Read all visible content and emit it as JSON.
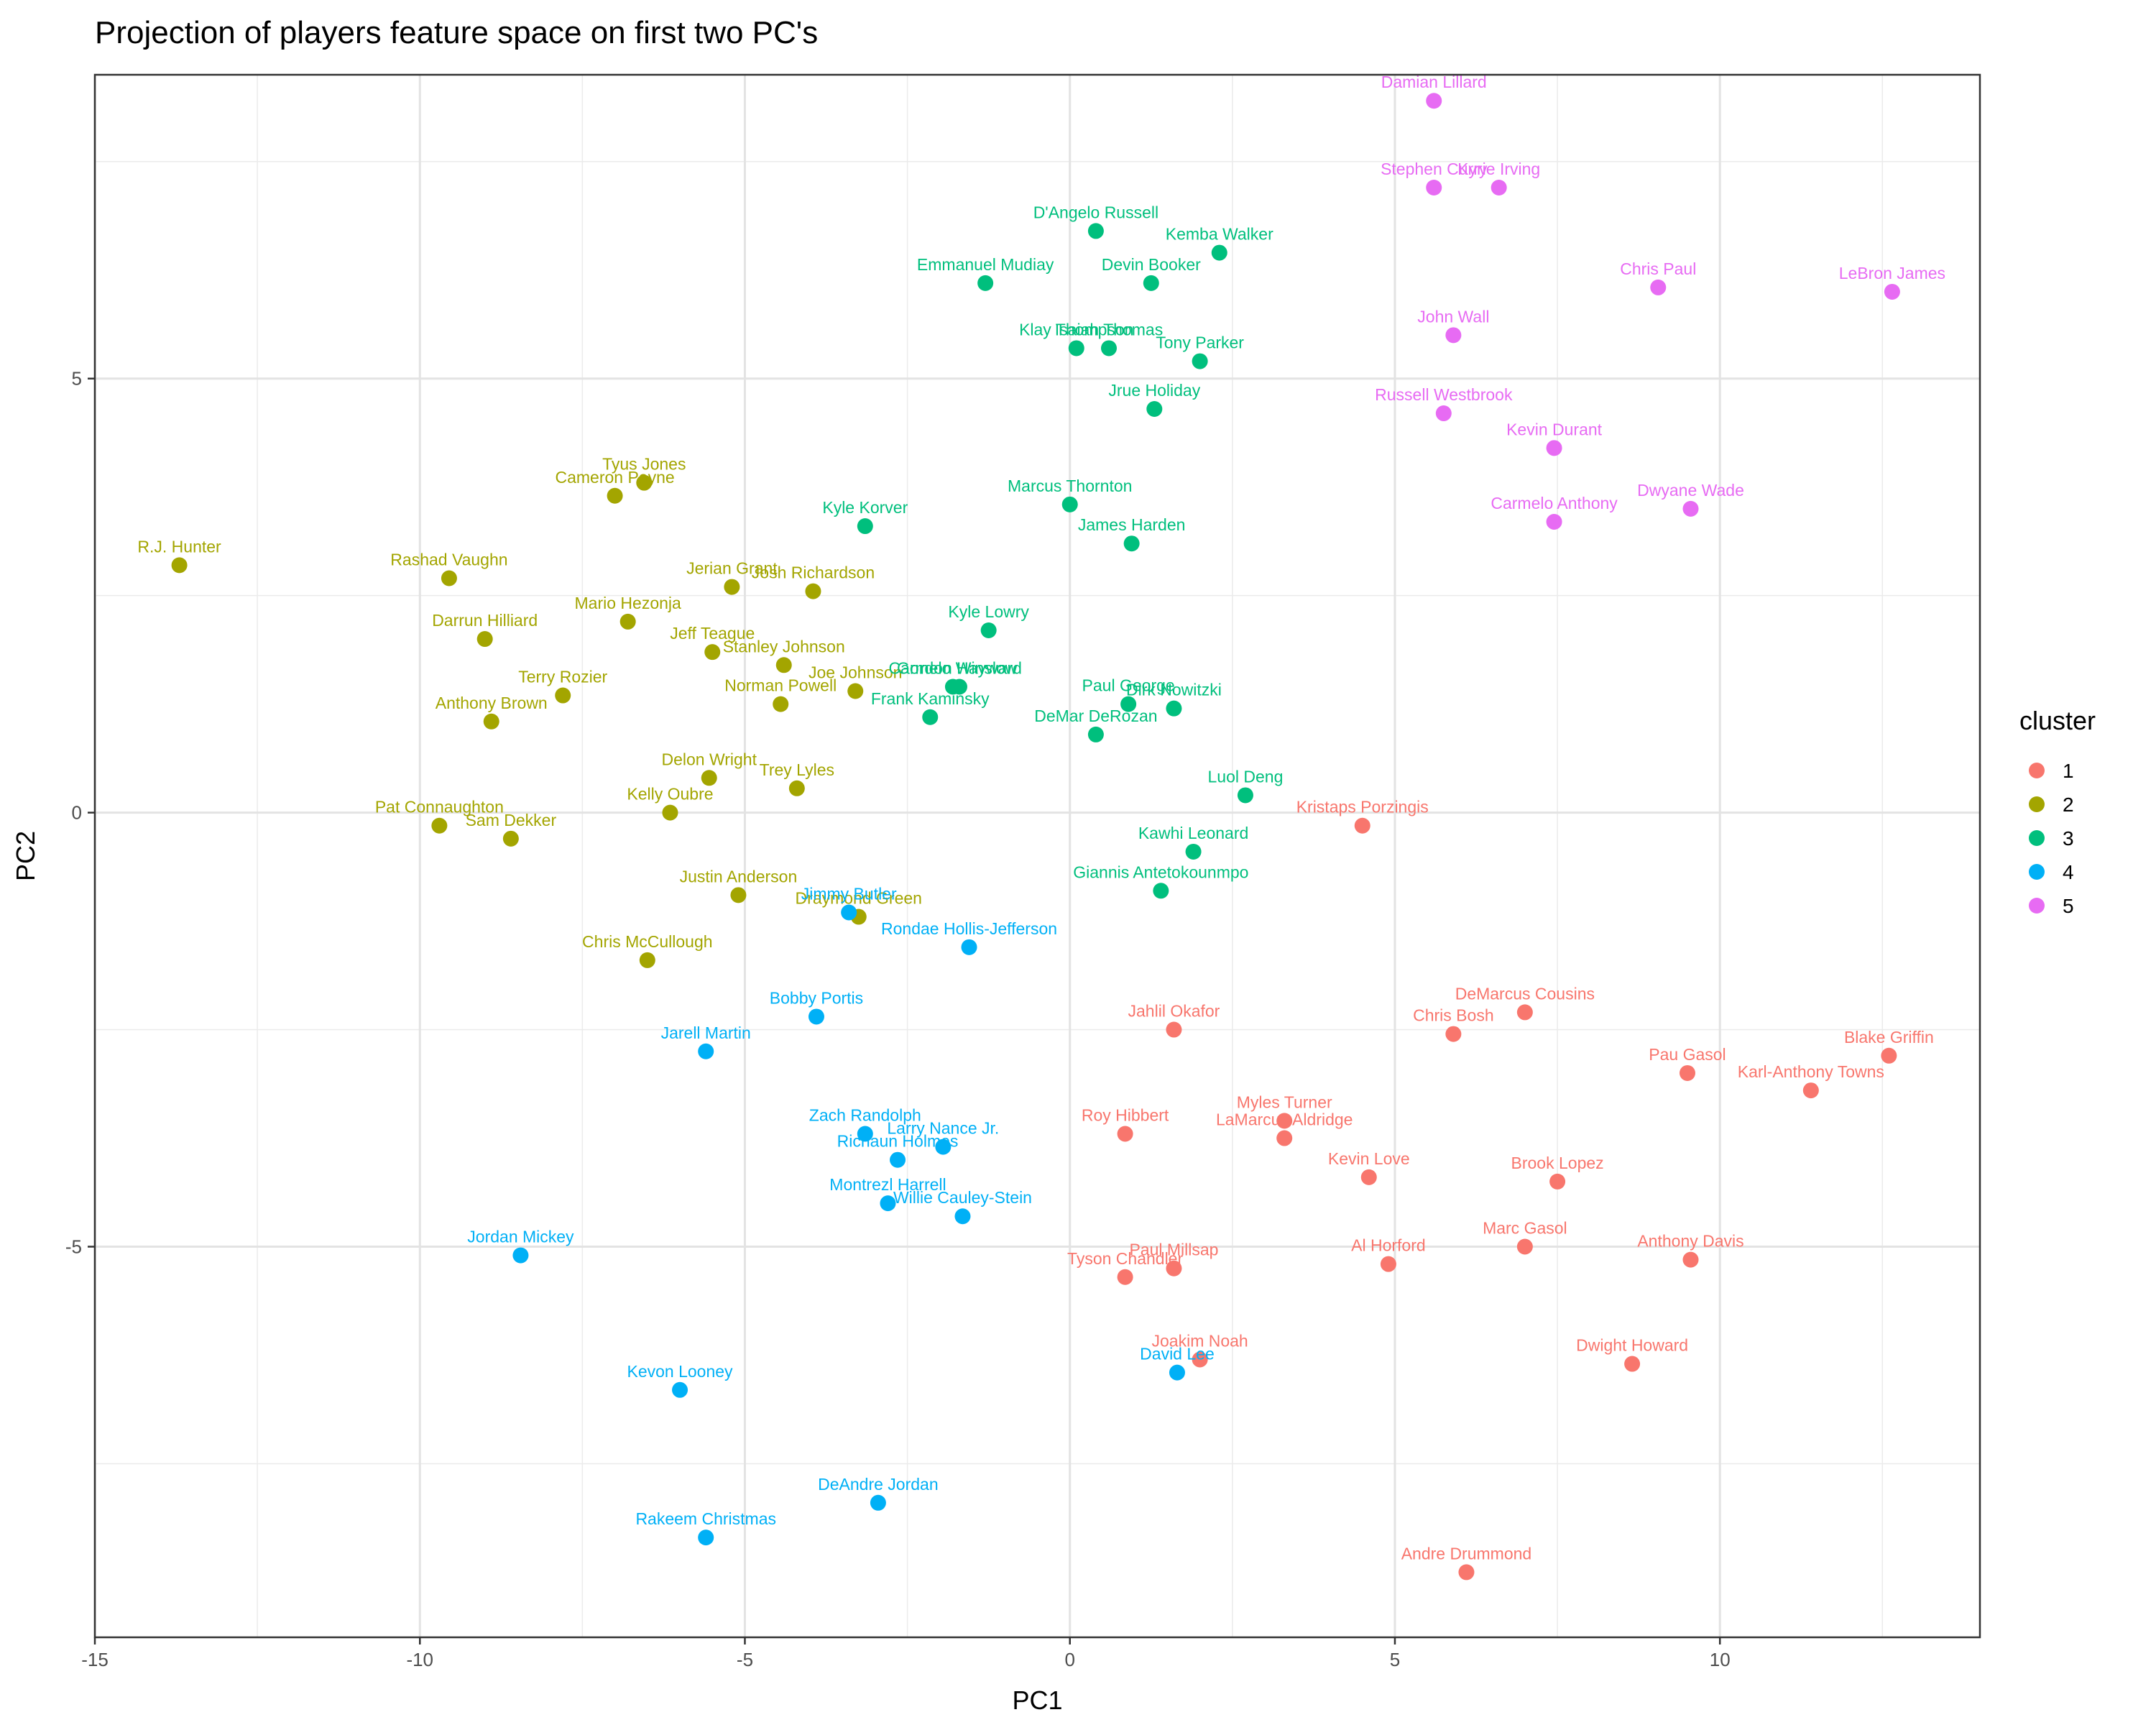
{
  "chart_data": {
    "type": "scatter",
    "title": "Projection of players feature space on first two PC's",
    "xlabel": "PC1",
    "ylabel": "PC2",
    "xlim": [
      -15,
      14
    ],
    "ylim": [
      -9.5,
      8.5
    ],
    "x_ticks": [
      -15,
      -10,
      -5,
      0,
      5,
      10
    ],
    "y_ticks": [
      -5,
      0,
      5
    ],
    "grid": true,
    "legend": {
      "title": "cluster",
      "position": "right"
    },
    "series": [
      {
        "name": "1",
        "color": "#F8766D",
        "points": [
          {
            "label": "Kristaps Porzingis",
            "x": 4.5,
            "y": -0.15
          },
          {
            "label": "DeMarcus Cousins",
            "x": 7.0,
            "y": -2.3
          },
          {
            "label": "Chris Bosh",
            "x": 5.9,
            "y": -2.55
          },
          {
            "label": "Jahlil Okafor",
            "x": 1.6,
            "y": -2.5
          },
          {
            "label": "Blake Griffin",
            "x": 12.6,
            "y": -2.8
          },
          {
            "label": "Pau Gasol",
            "x": 9.5,
            "y": -3.0
          },
          {
            "label": "Karl-Anthony Towns",
            "x": 11.4,
            "y": -3.2
          },
          {
            "label": "Myles Turner",
            "x": 3.3,
            "y": -3.55
          },
          {
            "label": "Roy Hibbert",
            "x": 0.85,
            "y": -3.7
          },
          {
            "label": "LaMarcus Aldridge",
            "x": 3.3,
            "y": -3.75
          },
          {
            "label": "Kevin Love",
            "x": 4.6,
            "y": -4.2
          },
          {
            "label": "Brook Lopez",
            "x": 7.5,
            "y": -4.25
          },
          {
            "label": "Al Horford",
            "x": 4.9,
            "y": -5.2
          },
          {
            "label": "Marc Gasol",
            "x": 7.0,
            "y": -5.0
          },
          {
            "label": "Anthony Davis",
            "x": 9.55,
            "y": -5.15
          },
          {
            "label": "Paul Millsap",
            "x": 1.6,
            "y": -5.25
          },
          {
            "label": "Tyson Chandler",
            "x": 0.85,
            "y": -5.35
          },
          {
            "label": "Joakim Noah",
            "x": 2.0,
            "y": -6.3
          },
          {
            "label": "Dwight Howard",
            "x": 8.65,
            "y": -6.35
          },
          {
            "label": "Andre Drummond",
            "x": 6.1,
            "y": -8.75
          }
        ]
      },
      {
        "name": "2",
        "color": "#A3A500",
        "points": [
          {
            "label": "Tyus Jones",
            "x": -6.55,
            "y": 3.8
          },
          {
            "label": "Cameron Payne",
            "x": -7.0,
            "y": 3.65
          },
          {
            "label": "R.J. Hunter",
            "x": -13.7,
            "y": 2.85
          },
          {
            "label": "Rashad Vaughn",
            "x": -9.55,
            "y": 2.7
          },
          {
            "label": "Jerian Grant",
            "x": -5.2,
            "y": 2.6
          },
          {
            "label": "Josh Richardson",
            "x": -3.95,
            "y": 2.55
          },
          {
            "label": "Mario Hezonja",
            "x": -6.8,
            "y": 2.2
          },
          {
            "label": "Darrun Hilliard",
            "x": -9.0,
            "y": 2.0
          },
          {
            "label": "Jeff Teague",
            "x": -5.5,
            "y": 1.85
          },
          {
            "label": "Stanley Johnson",
            "x": -4.4,
            "y": 1.7
          },
          {
            "label": "Joe Johnson",
            "x": -3.3,
            "y": 1.4
          },
          {
            "label": "Terry Rozier",
            "x": -7.8,
            "y": 1.35
          },
          {
            "label": "Norman Powell",
            "x": -4.45,
            "y": 1.25
          },
          {
            "label": "Anthony Brown",
            "x": -8.9,
            "y": 1.05
          },
          {
            "label": "Delon Wright",
            "x": -5.55,
            "y": 0.4
          },
          {
            "label": "Trey Lyles",
            "x": -4.2,
            "y": 0.28
          },
          {
            "label": "Kelly Oubre",
            "x": -6.15,
            "y": 0.0
          },
          {
            "label": "Pat Connaughton",
            "x": -9.7,
            "y": -0.15
          },
          {
            "label": "Sam Dekker",
            "x": -8.6,
            "y": -0.3
          },
          {
            "label": "Justin Anderson",
            "x": -5.1,
            "y": -0.95
          },
          {
            "label": "Draymond Green",
            "x": -3.25,
            "y": -1.2
          },
          {
            "label": "Chris McCullough",
            "x": -6.5,
            "y": -1.7
          }
        ]
      },
      {
        "name": "3",
        "color": "#00BF7D",
        "points": [
          {
            "label": "D'Angelo Russell",
            "x": 0.4,
            "y": 6.7
          },
          {
            "label": "Kemba Walker",
            "x": 2.3,
            "y": 6.45
          },
          {
            "label": "Emmanuel Mudiay",
            "x": -1.3,
            "y": 6.1
          },
          {
            "label": "Devin Booker",
            "x": 1.25,
            "y": 6.1
          },
          {
            "label": "Klay Thompson",
            "x": 0.1,
            "y": 5.35
          },
          {
            "label": "Isaiah Thomas",
            "x": 0.6,
            "y": 5.35
          },
          {
            "label": "Tony Parker",
            "x": 2.0,
            "y": 5.2
          },
          {
            "label": "Jrue Holiday",
            "x": 1.3,
            "y": 4.65
          },
          {
            "label": "Marcus Thornton",
            "x": 0.0,
            "y": 3.55
          },
          {
            "label": "Kyle Korver",
            "x": -3.15,
            "y": 3.3
          },
          {
            "label": "James Harden",
            "x": 0.95,
            "y": 3.1
          },
          {
            "label": "Kyle Lowry",
            "x": -1.25,
            "y": 2.1
          },
          {
            "label": "Gordon Hayward",
            "x": -1.7,
            "y": 1.45
          },
          {
            "label": "Carmelo Winslow",
            "x": -1.8,
            "y": 1.45
          },
          {
            "label": "Frank Kaminsky",
            "x": -2.15,
            "y": 1.1
          },
          {
            "label": "Paul George",
            "x": 0.9,
            "y": 1.25
          },
          {
            "label": "Dirk Nowitzki",
            "x": 1.6,
            "y": 1.2
          },
          {
            "label": "DeMar DeRozan",
            "x": 0.4,
            "y": 0.9
          },
          {
            "label": "Luol Deng",
            "x": 2.7,
            "y": 0.2
          },
          {
            "label": "Kawhi Leonard",
            "x": 1.9,
            "y": -0.45
          },
          {
            "label": "Giannis Antetokounmpo",
            "x": 1.4,
            "y": -0.9
          }
        ]
      },
      {
        "name": "4",
        "color": "#00B0F6",
        "points": [
          {
            "label": "Jimmy Butler",
            "x": -3.4,
            "y": -1.15
          },
          {
            "label": "Rondae Hollis-Jefferson",
            "x": -1.55,
            "y": -1.55
          },
          {
            "label": "Bobby Portis",
            "x": -3.9,
            "y": -2.35
          },
          {
            "label": "Jarell Martin",
            "x": -5.6,
            "y": -2.75
          },
          {
            "label": "Zach Randolph",
            "x": -3.15,
            "y": -3.7
          },
          {
            "label": "Larry Nance Jr.",
            "x": -1.95,
            "y": -3.85
          },
          {
            "label": "Richaun Holmes",
            "x": -2.65,
            "y": -4.0
          },
          {
            "label": "Montrezl Harrell",
            "x": -2.8,
            "y": -4.5
          },
          {
            "label": "Willie Cauley-Stein",
            "x": -1.65,
            "y": -4.65
          },
          {
            "label": "Jordan Mickey",
            "x": -8.45,
            "y": -5.1
          },
          {
            "label": "David Lee",
            "x": 1.65,
            "y": -6.45
          },
          {
            "label": "Kevon Looney",
            "x": -6.0,
            "y": -6.65
          },
          {
            "label": "DeAndre Jordan",
            "x": -2.95,
            "y": -7.95
          },
          {
            "label": "Rakeem Christmas",
            "x": -5.6,
            "y": -8.35
          }
        ]
      },
      {
        "name": "5",
        "color": "#E76BF3",
        "points": [
          {
            "label": "Damian Lillard",
            "x": 5.6,
            "y": 8.2
          },
          {
            "label": "Stephen Curry",
            "x": 5.6,
            "y": 7.2
          },
          {
            "label": "Kyrie Irving",
            "x": 6.6,
            "y": 7.2
          },
          {
            "label": "Chris Paul",
            "x": 9.05,
            "y": 6.05
          },
          {
            "label": "LeBron James",
            "x": 12.65,
            "y": 6.0
          },
          {
            "label": "John Wall",
            "x": 5.9,
            "y": 5.5
          },
          {
            "label": "Russell Westbrook",
            "x": 5.75,
            "y": 4.6
          },
          {
            "label": "Kevin Durant",
            "x": 7.45,
            "y": 4.2
          },
          {
            "label": "Dwyane Wade",
            "x": 9.55,
            "y": 3.5
          },
          {
            "label": "Carmelo Anthony",
            "x": 7.45,
            "y": 3.35
          }
        ]
      }
    ]
  }
}
